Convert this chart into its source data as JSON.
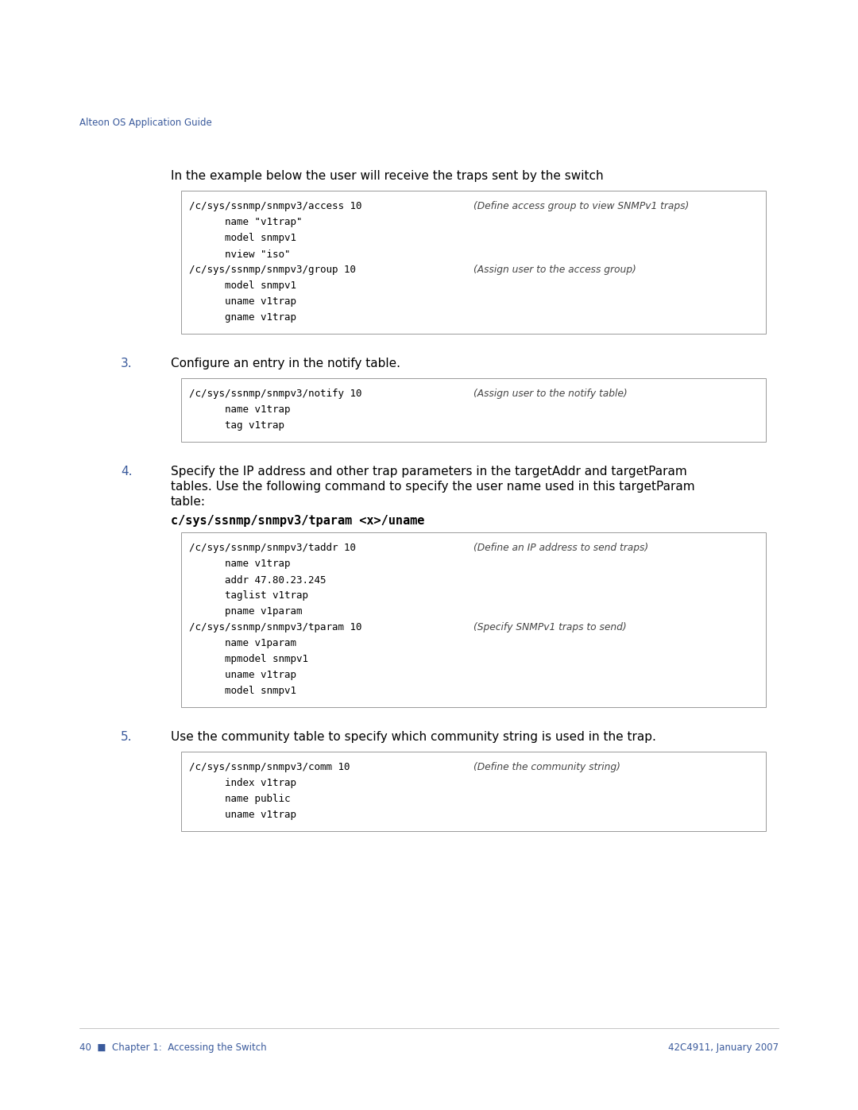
{
  "page_bg": "#ffffff",
  "header_text": "Alteon OS Application Guide",
  "header_color": "#3a5a9c",
  "header_fontsize": 8.5,
  "footer_left": "40  ■  Chapter 1:  Accessing the Switch",
  "footer_right": "42C4911, January 2007",
  "footer_color": "#3a5a9c",
  "footer_fontsize": 8.5,
  "intro_text": "In the example below the user will receive the traps sent by the switch",
  "intro_fontsize": 11.0,
  "box1_code_lines": [
    "/c/sys/ssnmp/snmpv3/access 10",
    "      name \"v1trap\"",
    "      model snmpv1",
    "      nview \"iso\"",
    "/c/sys/ssnmp/snmpv3/group 10",
    "      model snmpv1",
    "      uname v1trap",
    "      gname v1trap"
  ],
  "box1_italic_lines": [
    "(Define access group to view SNMPv1 traps)",
    "",
    "",
    "",
    "(Assign user to the access group)",
    "",
    "",
    ""
  ],
  "step3_num": "3.",
  "step3_text": "Configure an entry in the notify table.",
  "step3_fontsize": 11.0,
  "box2_code_lines": [
    "/c/sys/ssnmp/snmpv3/notify 10",
    "      name v1trap",
    "      tag v1trap"
  ],
  "box2_italic_lines": [
    "(Assign user to the notify table)",
    "",
    ""
  ],
  "step4_num": "4.",
  "step4_lines": [
    "Specify the IP address and other trap parameters in the targetAddr and targetParam",
    "tables. Use the following command to specify the user name used in this targetParam",
    "table:"
  ],
  "step4_bold": "c/sys/ssnmp/snmpv3/tparam <x>/uname",
  "step4_fontsize": 11.0,
  "box3_code_lines": [
    "/c/sys/ssnmp/snmpv3/taddr 10",
    "      name v1trap",
    "      addr 47.80.23.245",
    "      taglist v1trap",
    "      pname v1param",
    "/c/sys/ssnmp/snmpv3/tparam 10",
    "      name v1param",
    "      mpmodel snmpv1",
    "      uname v1trap",
    "      model snmpv1"
  ],
  "box3_italic_lines": [
    "(Define an IP address to send traps)",
    "",
    "",
    "",
    "",
    "(Specify SNMPv1 traps to send)",
    "",
    "",
    "",
    ""
  ],
  "step5_num": "5.",
  "step5_text": "Use the community table to specify which community string is used in the trap.",
  "step5_fontsize": 11.0,
  "box4_code_lines": [
    "/c/sys/ssnmp/snmpv3/comm 10",
    "      index v1trap",
    "      name public",
    "      uname v1trap"
  ],
  "box4_italic_lines": [
    "(Define the community string)",
    "",
    "",
    ""
  ],
  "code_fontsize": 9.0,
  "italic_fontsize": 8.8,
  "box_bg": "#ffffff",
  "box_border": "#999999",
  "code_color": "#000000",
  "italic_color": "#444444",
  "step_color": "#3a5a9c",
  "text_color": "#000000"
}
